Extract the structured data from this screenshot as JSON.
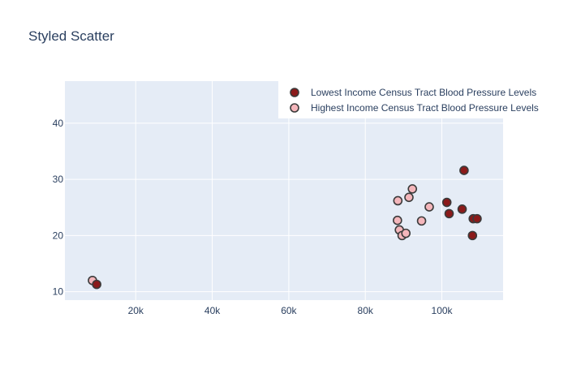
{
  "chart_data": {
    "type": "scatter",
    "title": "Styled Scatter",
    "xlabel": "",
    "ylabel": "",
    "xlim": [
      1500,
      116000
    ],
    "ylim": [
      8.5,
      47.5
    ],
    "x_ticks": [
      20000,
      40000,
      60000,
      80000,
      100000
    ],
    "x_tick_labels": [
      "20k",
      "40k",
      "60k",
      "80k",
      "100k"
    ],
    "y_ticks": [
      10,
      20,
      30,
      40
    ],
    "y_tick_labels": [
      "10",
      "20",
      "30",
      "40"
    ],
    "grid": true,
    "legend_position": "top-right",
    "plot_background": "#e5ecf6",
    "series": [
      {
        "name": "Lowest Income Census Tract Blood Pressure Levels",
        "color": "#8b1a1a",
        "edge_color": "#3b3b3b",
        "points": [
          {
            "x": 9800,
            "y": 11.3
          },
          {
            "x": 101300,
            "y": 25.9
          },
          {
            "x": 101900,
            "y": 23.9
          },
          {
            "x": 105300,
            "y": 24.7
          },
          {
            "x": 105800,
            "y": 31.6
          },
          {
            "x": 108000,
            "y": 20.0
          },
          {
            "x": 108200,
            "y": 23.0
          },
          {
            "x": 109200,
            "y": 23.0
          }
        ]
      },
      {
        "name": "Highest Income Census Tract Blood Pressure Levels",
        "color": "#f4b6bb",
        "edge_color": "#3b3b3b",
        "points": [
          {
            "x": 8700,
            "y": 12.0
          },
          {
            "x": 88500,
            "y": 26.2
          },
          {
            "x": 88400,
            "y": 22.7
          },
          {
            "x": 88900,
            "y": 21.0
          },
          {
            "x": 89600,
            "y": 20.0
          },
          {
            "x": 90600,
            "y": 20.4
          },
          {
            "x": 91400,
            "y": 26.8
          },
          {
            "x": 92300,
            "y": 28.3
          },
          {
            "x": 94700,
            "y": 22.6
          },
          {
            "x": 96700,
            "y": 25.1
          }
        ]
      }
    ]
  }
}
